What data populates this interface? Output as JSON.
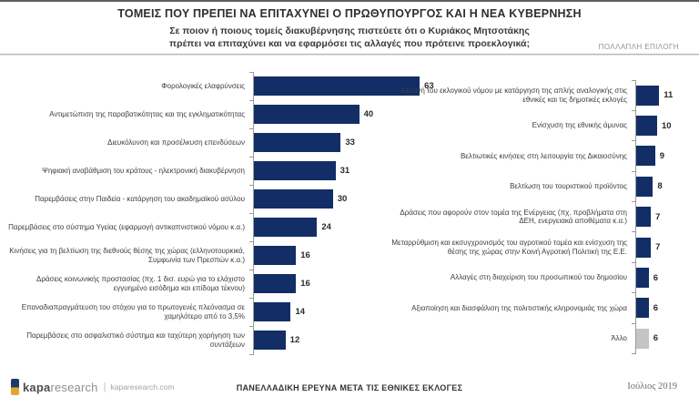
{
  "header": {
    "title": "ΤΟΜΕΙΣ ΠΟΥ ΠΡΕΠΕΙ ΝΑ ΕΠΙΤΑΧΥΝΕΙ Ο ΠΡΩΘΥΠΟΥΡΓΟΣ ΚΑΙ Η ΝΕΑ ΚΥΒΕΡΝΗΣΗ",
    "subtitle_line1": "Σε ποιον ή ποιους τομείς διακυβέρνησης πιστεύετε ότι ο Κυριάκος Μητσοτάκης",
    "subtitle_line2": "πρέπει να επιταχύνει και να εφαρμόσει τις αλλαγές που πρότεινε προεκλογικά;",
    "note": "ΠΟΛΛΑΠΛΗ ΕΠΙΛΟΓΗ"
  },
  "chart_data": [
    {
      "type": "bar",
      "orientation": "horizontal",
      "title": "",
      "xlabel": "",
      "ylabel": "",
      "xlim": [
        0,
        70
      ],
      "grid": false,
      "legend": false,
      "bar_color": "#132e66",
      "categories": [
        "Φορολογικές ελαφρύνσεις",
        "Αντιμετώπιση της παραβατικότητας και της εγκληματικότητας",
        "Διευκόλυνση και προσέλκυση επενδύσεων",
        "Ψηφιακή αναβάθμιση του κράτους - ηλεκτρονική διακυβέρνηση",
        "Παρεμβάσεις στην Παιδεία - κατάργηση του ακαδημαϊκού ασύλου",
        "Παρεμβάσεις στο σύστημα Υγείας (εφαρμογή αντικαπνιστικού νόμου κ.α.)",
        "Κινήσεις για τη βελτίωση της διεθνούς θέσης της χώρας (ελληνοτουρκικά, Συμφωνία των Πρεσπών κ.α.)",
        "Δράσεις κοινωνικής προστασίας (πχ. 1 δισ. ευρώ για το ελάχιστο εγγυημένο εισόδημα και επίδομα τέκνου)",
        "Επαναδιαπραγμάτευση του στόχου για το πρωτογενές πλεόνασμα σε χαμηλότερο από το 3,5%",
        "Παρεμβάσεις στο ασφαλιστικό σύστημα και ταχύτερη χορήγηση των συντάξεων"
      ],
      "values": [
        63,
        40,
        33,
        31,
        30,
        24,
        16,
        16,
        14,
        12
      ]
    },
    {
      "type": "bar",
      "orientation": "horizontal",
      "title": "",
      "xlabel": "",
      "ylabel": "",
      "xlim": [
        0,
        12
      ],
      "grid": false,
      "legend": false,
      "bar_color": "#132e66",
      "bar_colors": [
        null,
        null,
        null,
        null,
        null,
        null,
        null,
        null,
        "#c4c4c4"
      ],
      "categories": [
        "Αλλαγή του εκλογικού νόμου με κατάργηση της απλής αναλογικής στις εθνικές και τις δημοτικές εκλογές",
        "Ενίσχυση της εθνικής άμυνας",
        "Βελτιωτικές κινήσεις στη λειτουργία της Δικαιοσύνης",
        "Βελτίωση του τουριστικού προϊόντος",
        "Δράσεις που αφορούν στον τομέα της Ενέργειας (πχ. προβλήματα στη ΔΕΗ, ενεργειακά αποθέματα κ.α.)",
        "Μεταρρύθμιση και εκσυγχρονισμός του αγροτικού τομέα και ενίσχυση της θέσης της χώρας στην Κοινή Αγροτική Πολιτική της Ε.Ε.",
        "Αλλαγές στη διαχείριση του προσωπικού του δημοσίου",
        "Αξιοποίηση και διασφάλιση της πολιτιστικής κληρονομιάς της χώρα",
        "Άλλο"
      ],
      "values": [
        11,
        10,
        9,
        8,
        7,
        7,
        6,
        6,
        6
      ]
    }
  ],
  "footer": {
    "brand_bold": "kapa",
    "brand_light": "research",
    "brand_sep": "|",
    "brand_url": "kaparesearch.com",
    "survey_note": "ΠΑΝΕΛΛΑΔΙΚΗ ΕΡΕΥΝΑ ΜΕΤΑ ΤΙΣ ΕΘΝΙΚΕΣ ΕΚΛΟΓΕΣ",
    "date": "Ιούλιος 2019"
  },
  "colors": {
    "bar_navy": "#132e66",
    "bar_gray": "#c4c4c4",
    "logo_blue": "#1d3a6e",
    "logo_gold": "#e3a62f",
    "divider_gray": "#b4b4b4"
  }
}
